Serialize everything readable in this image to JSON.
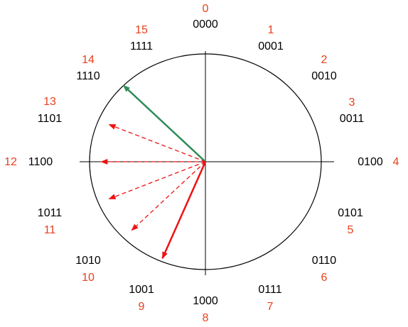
{
  "colors": {
    "decimal_label": "#e8401c",
    "binary_label": "#000000",
    "circle": "#000000",
    "axis": "#000000",
    "green_arrow": "#2e8b57",
    "red_arrow": "#ee1111",
    "dashed_arrow": "#ee1111"
  },
  "positions": [
    {
      "decimal": "0",
      "binary": "0000"
    },
    {
      "decimal": "1",
      "binary": "0001"
    },
    {
      "decimal": "2",
      "binary": "0010"
    },
    {
      "decimal": "3",
      "binary": "0011"
    },
    {
      "decimal": "4",
      "binary": "0100"
    },
    {
      "decimal": "5",
      "binary": "0101"
    },
    {
      "decimal": "6",
      "binary": "0110"
    },
    {
      "decimal": "7",
      "binary": "0111"
    },
    {
      "decimal": "8",
      "binary": "1000"
    },
    {
      "decimal": "9",
      "binary": "1001"
    },
    {
      "decimal": "10",
      "binary": "1010"
    },
    {
      "decimal": "11",
      "binary": "1011"
    },
    {
      "decimal": "12",
      "binary": "1100"
    },
    {
      "decimal": "13",
      "binary": "1101"
    },
    {
      "decimal": "14",
      "binary": "1110"
    },
    {
      "decimal": "15",
      "binary": "1111"
    }
  ],
  "arrows": [
    {
      "kind": "solid-green",
      "target_position": 14
    },
    {
      "kind": "dashed-red",
      "target_position": 13
    },
    {
      "kind": "dashed-red",
      "target_position": 12
    },
    {
      "kind": "dashed-red",
      "target_position": 11
    },
    {
      "kind": "dashed-red",
      "target_position": 10
    },
    {
      "kind": "solid-red",
      "target_position": 9
    }
  ]
}
